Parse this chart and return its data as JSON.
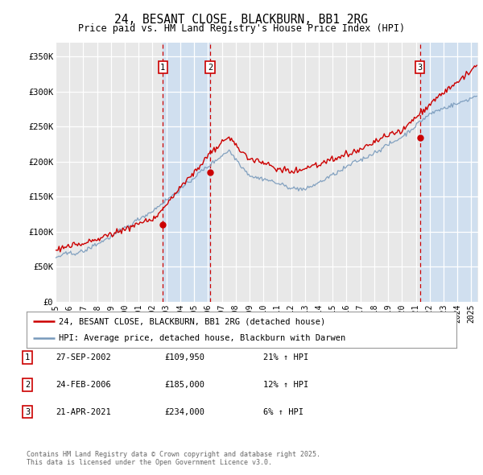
{
  "title": "24, BESANT CLOSE, BLACKBURN, BB1 2RG",
  "subtitle": "Price paid vs. HM Land Registry's House Price Index (HPI)",
  "ylabel_ticks": [
    "£0",
    "£50K",
    "£100K",
    "£150K",
    "£200K",
    "£250K",
    "£300K",
    "£350K"
  ],
  "ylabel_values": [
    0,
    50000,
    100000,
    150000,
    200000,
    250000,
    300000,
    350000
  ],
  "ylim": [
    0,
    370000
  ],
  "xlim_start": 1995.0,
  "xlim_end": 2025.5,
  "bg_color": "#ffffff",
  "plot_bg_color": "#e8e8e8",
  "grid_color": "#ffffff",
  "red_color": "#cc0000",
  "blue_color": "#7799bb",
  "span_color": "#d0dfef",
  "sale1_date": 2002.74,
  "sale1_price": 109950,
  "sale2_date": 2006.15,
  "sale2_price": 185000,
  "sale3_date": 2021.3,
  "sale3_price": 234000,
  "legend_line1": "24, BESANT CLOSE, BLACKBURN, BB1 2RG (detached house)",
  "legend_line2": "HPI: Average price, detached house, Blackburn with Darwen",
  "table_rows": [
    {
      "num": "1",
      "date": "27-SEP-2002",
      "price": "£109,950",
      "hpi": "21% ↑ HPI"
    },
    {
      "num": "2",
      "date": "24-FEB-2006",
      "price": "£185,000",
      "hpi": "12% ↑ HPI"
    },
    {
      "num": "3",
      "date": "21-APR-2021",
      "price": "£234,000",
      "hpi": "6% ↑ HPI"
    }
  ],
  "footer": "Contains HM Land Registry data © Crown copyright and database right 2025.\nThis data is licensed under the Open Government Licence v3.0.",
  "xtick_years": [
    1995,
    1996,
    1997,
    1998,
    1999,
    2000,
    2001,
    2002,
    2003,
    2004,
    2005,
    2006,
    2007,
    2008,
    2009,
    2010,
    2011,
    2012,
    2013,
    2014,
    2015,
    2016,
    2017,
    2018,
    2019,
    2020,
    2021,
    2022,
    2023,
    2024,
    2025
  ]
}
